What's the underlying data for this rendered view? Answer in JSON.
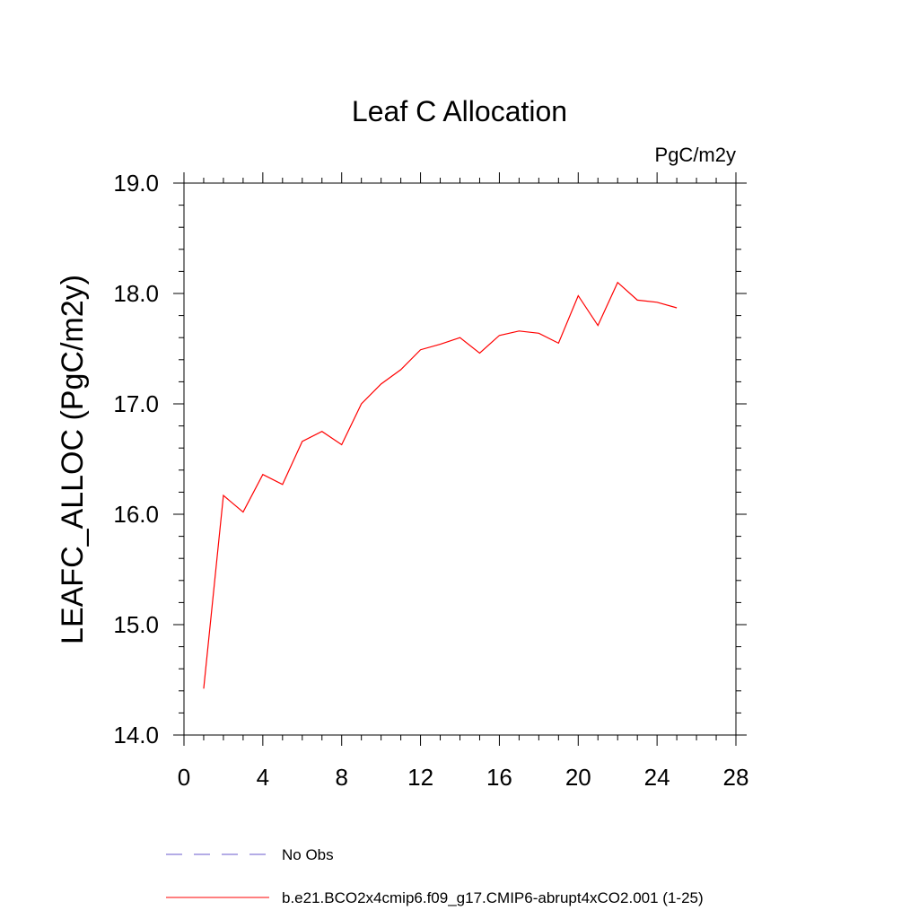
{
  "chart_data": {
    "type": "line",
    "title": "Leaf C Allocation",
    "units_label": "PgC/m2y",
    "ylabel": "LEAFC_ALLOC  (PgC/m2y)",
    "xlabel": "",
    "xlim": [
      0,
      28
    ],
    "ylim": [
      14.0,
      19.0
    ],
    "xticks": [
      0,
      4,
      8,
      12,
      16,
      20,
      24,
      28
    ],
    "yticks": [
      14.0,
      15.0,
      16.0,
      17.0,
      18.0,
      19.0
    ],
    "ytick_labels": [
      "14.0",
      "15.0",
      "16.0",
      "17.0",
      "18.0",
      "19.0"
    ],
    "series": [
      {
        "name": "b.e21.BCO2x4cmip6.f09_g17.CMIP6-abrupt4xCO2.001 (1-25)",
        "color": "#ff0000",
        "style": "solid",
        "x": [
          1,
          2,
          3,
          4,
          5,
          6,
          7,
          8,
          9,
          10,
          11,
          12,
          13,
          14,
          15,
          16,
          17,
          18,
          19,
          20,
          21,
          22,
          23,
          24,
          25
        ],
        "y": [
          14.42,
          16.17,
          16.02,
          16.36,
          16.27,
          16.66,
          16.75,
          16.63,
          17.0,
          17.18,
          17.31,
          17.49,
          17.54,
          17.6,
          17.46,
          17.62,
          17.66,
          17.64,
          17.55,
          17.98,
          17.71,
          18.1,
          17.94,
          17.92,
          17.87
        ]
      }
    ],
    "legend": [
      {
        "label": "No Obs",
        "color": "#6a5acd",
        "style": "dashed"
      },
      {
        "label": "b.e21.BCO2x4cmip6.f09_g17.CMIP6-abrupt4xCO2.001 (1-25)",
        "color": "#ff0000",
        "style": "solid"
      }
    ],
    "legend_position": "bottom",
    "grid": false
  }
}
